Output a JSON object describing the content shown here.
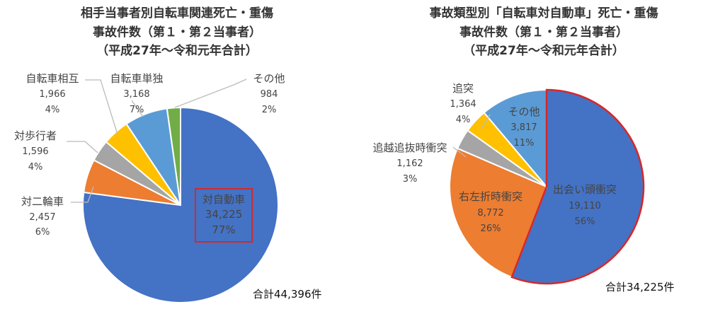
{
  "chart_data": [
    {
      "type": "pie",
      "title": [
        "相手当事者別自転車関連死亡・重傷",
        "事故件数（第１・第２当事者）",
        "（平成27年～令和元年合計）"
      ],
      "total_label": "合計44,396件",
      "highlight_slice": "対自動車",
      "slices": [
        {
          "name": "対自動車",
          "value": "34,225",
          "percent": "77%",
          "color": "#4472c4"
        },
        {
          "name": "対二輪車",
          "value": "2,457",
          "percent": "6%",
          "color": "#ed7d31"
        },
        {
          "name": "対歩行者",
          "value": "1,596",
          "percent": "4%",
          "color": "#a5a5a5"
        },
        {
          "name": "自転車相互",
          "value": "1,966",
          "percent": "4%",
          "color": "#ffc000"
        },
        {
          "name": "自転車単独",
          "value": "3,168",
          "percent": "7%",
          "color": "#5b9bd5"
        },
        {
          "name": "その他",
          "value": "984",
          "percent": "2%",
          "color": "#70ad47"
        }
      ]
    },
    {
      "type": "pie",
      "title": [
        "事故類型別「自転車対自動車」死亡・重傷",
        "事故件数（第１・第２当事者）",
        "（平成27年～令和元年合計）"
      ],
      "total_label": "合計34,225件",
      "slices": [
        {
          "name": "出会い頭衝突",
          "value": "19,110",
          "percent": "56%",
          "color": "#4472c4"
        },
        {
          "name": "右左折時衝突",
          "value": "8,772",
          "percent": "26%",
          "color": "#ed7d31"
        },
        {
          "name": "追越追抜時衝突",
          "value": "1,162",
          "percent": "3%",
          "color": "#a5a5a5"
        },
        {
          "name": "追突",
          "value": "1,364",
          "percent": "4%",
          "color": "#ffc000"
        },
        {
          "name": "その他",
          "value": "3,817",
          "percent": "11%",
          "color": "#5b9bd5"
        }
      ]
    }
  ]
}
